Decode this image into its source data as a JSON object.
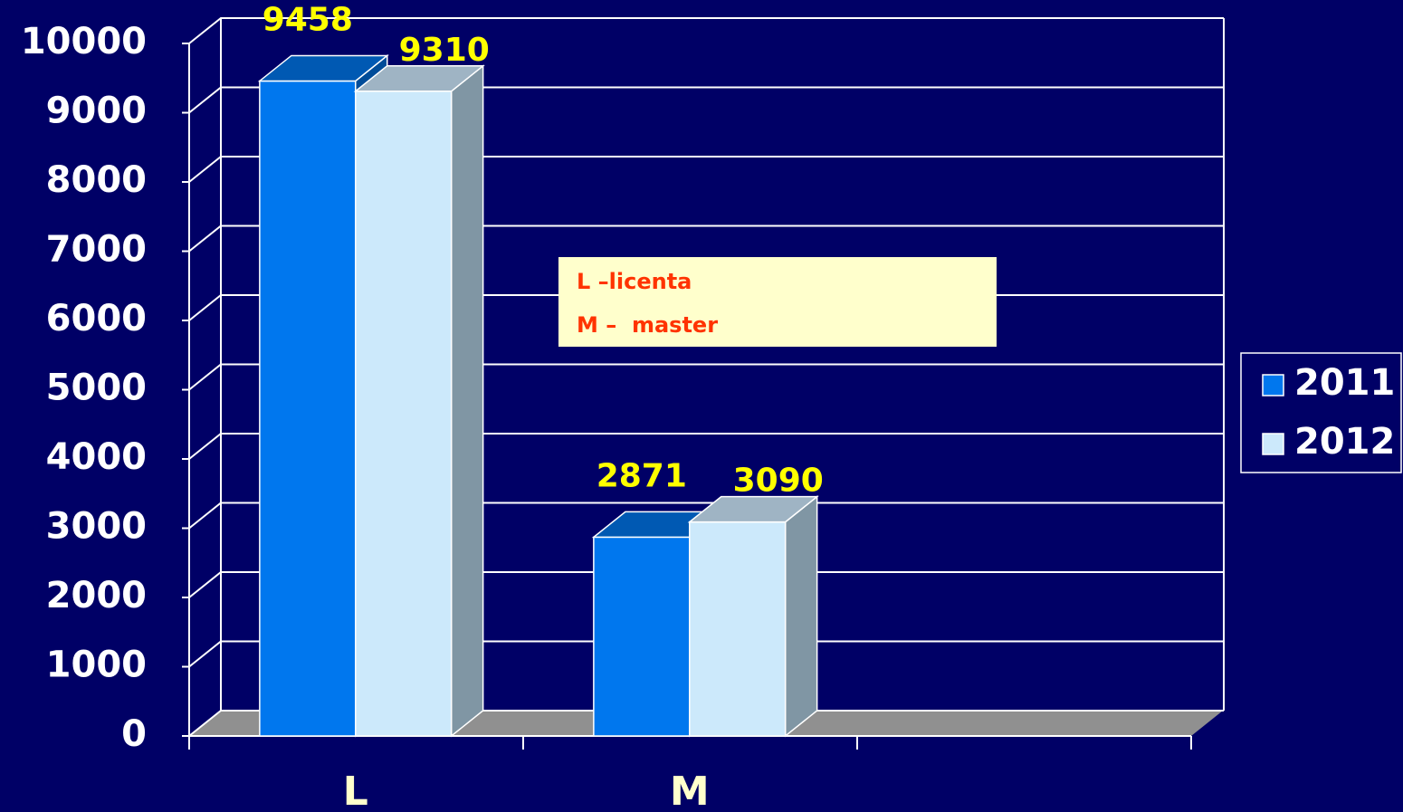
{
  "chart_data": {
    "type": "bar3d",
    "categories": [
      "L",
      "M",
      null
    ],
    "series": [
      {
        "name": "2011",
        "color": "#0077ee",
        "values": [
          9458,
          2871,
          null
        ]
      },
      {
        "name": "2012",
        "color": "#cce9fb",
        "values": [
          9310,
          3090,
          null
        ]
      }
    ],
    "ylim": [
      0,
      10000
    ],
    "yticks": [
      0,
      1000,
      2000,
      3000,
      4000,
      5000,
      6000,
      7000,
      8000,
      9000,
      10000
    ],
    "grid": true,
    "legend": "right",
    "annotations": [
      "L –licenta",
      "M –  master"
    ]
  }
}
